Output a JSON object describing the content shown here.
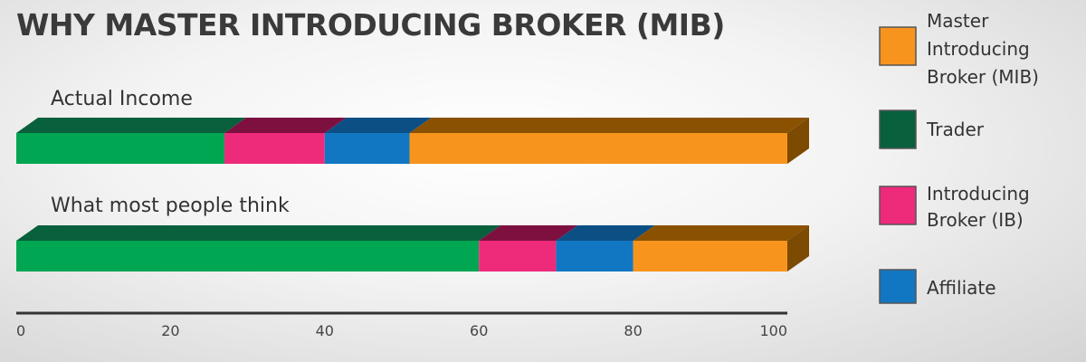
{
  "chart_data": {
    "type": "bar",
    "orientation": "horizontal",
    "stacked": true,
    "title": "WHY MASTER INTRODUCING BROKER (MIB)",
    "categories": [
      "Actual Income",
      "What most people think"
    ],
    "series": [
      {
        "name": "Trader",
        "values": [
          27,
          60
        ],
        "color": "#00a651",
        "top_color": "#08603c"
      },
      {
        "name": "Introducing Broker (IB)",
        "values": [
          13,
          10
        ],
        "color": "#ee2a7b",
        "top_color": "#7e1040"
      },
      {
        "name": "Affiliate",
        "values": [
          11,
          10
        ],
        "color": "#1277c2",
        "top_color": "#0b4f85"
      },
      {
        "name": "Master Introducing Broker (MIB)",
        "values": [
          49,
          20
        ],
        "color": "#f7941e",
        "top_color": "#8a5200"
      }
    ],
    "legend": {
      "placement": "right",
      "entries": [
        {
          "lines": [
            "Master",
            "Introducing",
            "Broker (MIB)"
          ],
          "color": "#f7941e"
        },
        {
          "lines": [
            "Trader"
          ],
          "color": "#08603c"
        },
        {
          "lines": [
            "Introducing",
            "Broker (IB)"
          ],
          "color": "#ee2a7b"
        },
        {
          "lines": [
            "Affiliate"
          ],
          "color": "#1277c2"
        }
      ]
    },
    "xlim": [
      0,
      100
    ],
    "xticks": [
      0,
      20,
      40,
      60,
      80,
      100
    ],
    "xlabel": "",
    "ylabel": "",
    "grid": false
  }
}
